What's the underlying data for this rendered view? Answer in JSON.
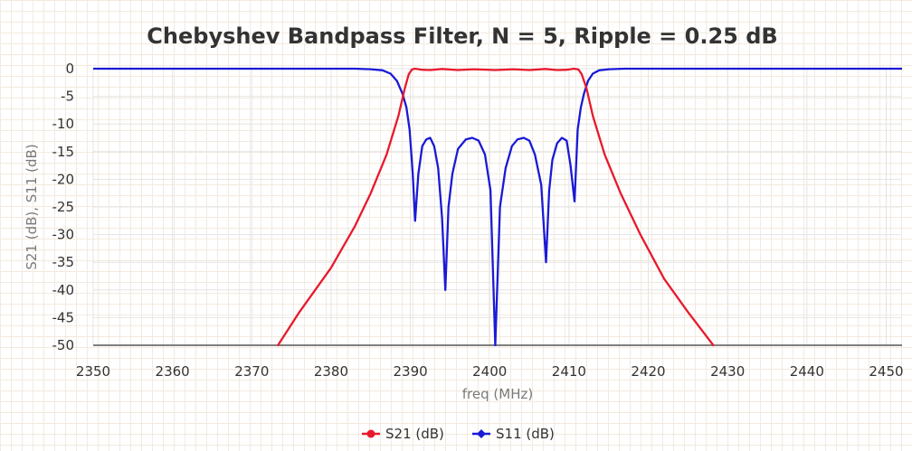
{
  "chart_data": {
    "type": "line",
    "title": "Chebyshev Bandpass Filter, N = 5, Ripple = 0.25 dB",
    "xlabel": "freq (MHz)",
    "ylabel": "S21 (dB), S11 (dB)",
    "xlim": [
      2350,
      2452
    ],
    "ylim": [
      -50,
      0
    ],
    "xticks": [
      2350,
      2360,
      2370,
      2380,
      2390,
      2400,
      2410,
      2420,
      2430,
      2440,
      2450
    ],
    "yticks": [
      0,
      -5,
      -10,
      -15,
      -20,
      -25,
      -30,
      -35,
      -40,
      -45,
      -50
    ],
    "grid": true,
    "legend_position": "bottom-center",
    "series": [
      {
        "name": "S21 (dB)",
        "color": "#e8192c",
        "x": [
          2373.3,
          2376,
          2380,
          2383,
          2385,
          2387,
          2388.5,
          2389.3,
          2389.8,
          2390.2,
          2390.6,
          2391.5,
          2392.5,
          2394,
          2396,
          2398,
          2400.7,
          2403,
          2405,
          2407,
          2408.5,
          2409.7,
          2410.6,
          2411.2,
          2411.6,
          2412.2,
          2413,
          2414.5,
          2416.5,
          2419,
          2422,
          2425,
          2428.2
        ],
        "y": [
          -50,
          -44,
          -36,
          -28.5,
          -22.5,
          -15.5,
          -8.5,
          -3.5,
          -1.0,
          -0.15,
          0,
          -0.2,
          -0.25,
          -0.05,
          -0.25,
          -0.1,
          -0.25,
          -0.1,
          -0.25,
          -0.05,
          -0.25,
          -0.2,
          0,
          -0.15,
          -1.0,
          -3.5,
          -8.5,
          -15.5,
          -22.5,
          -30,
          -38,
          -44,
          -50
        ]
      },
      {
        "name": "S11 (dB)",
        "color": "#1a1ad6",
        "x": [
          2350,
          2383,
          2385,
          2386.5,
          2387.5,
          2388.3,
          2389,
          2389.5,
          2389.9,
          2390.3,
          2390.6,
          2391,
          2391.5,
          2392,
          2392.5,
          2393,
          2393.5,
          2394,
          2394.4,
          2394.8,
          2395.3,
          2396,
          2397,
          2397.8,
          2398.6,
          2399.4,
          2400.1,
          2400.7,
          2401.3,
          2402,
          2402.8,
          2403.5,
          2404.3,
          2405,
          2405.7,
          2406.5,
          2407.1,
          2407.5,
          2407.9,
          2408.5,
          2409.1,
          2409.7,
          2410.2,
          2410.7,
          2411.1,
          2411.5,
          2411.9,
          2412.4,
          2413,
          2413.8,
          2415,
          2417,
          2420,
          2452
        ],
        "y": [
          0,
          0,
          -0.1,
          -0.3,
          -0.9,
          -2.2,
          -4.5,
          -7,
          -11,
          -19,
          -27.5,
          -19,
          -14,
          -12.8,
          -12.5,
          -14,
          -18,
          -27,
          -40,
          -25,
          -19,
          -14.5,
          -12.8,
          -12.5,
          -13,
          -15.5,
          -22,
          -50,
          -25,
          -18,
          -14,
          -12.8,
          -12.5,
          -13,
          -15.5,
          -21,
          -35,
          -22,
          -16.5,
          -13.5,
          -12.5,
          -13,
          -17.5,
          -24,
          -11,
          -7,
          -4.5,
          -2.2,
          -0.9,
          -0.3,
          -0.1,
          0,
          0,
          0
        ]
      }
    ]
  }
}
